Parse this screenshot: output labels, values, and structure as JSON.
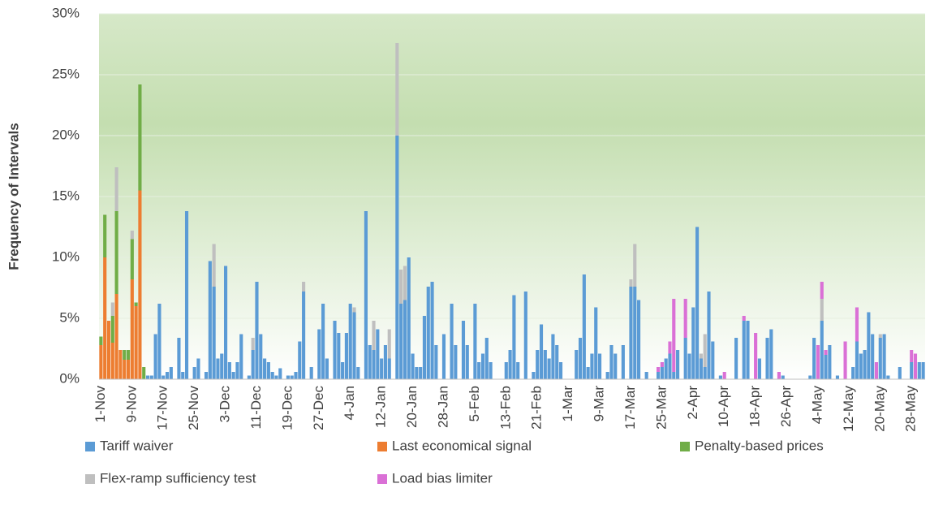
{
  "chart_data": {
    "type": "stacked-bar",
    "y_label": "Frequency of Intervals",
    "categories": [
      "1-Nov",
      null,
      null,
      null,
      null,
      null,
      null,
      null,
      "9-Nov",
      null,
      null,
      null,
      null,
      null,
      null,
      null,
      "17-Nov",
      null,
      null,
      null,
      null,
      null,
      null,
      null,
      "25-Nov",
      null,
      null,
      null,
      null,
      null,
      null,
      null,
      "3-Dec",
      null,
      null,
      null,
      null,
      null,
      null,
      null,
      "11-Dec",
      null,
      null,
      null,
      null,
      null,
      null,
      null,
      "19-Dec",
      null,
      null,
      null,
      null,
      null,
      null,
      null,
      "27-Dec",
      null,
      null,
      null,
      null,
      null,
      null,
      null,
      "4-Jan",
      null,
      null,
      null,
      null,
      null,
      null,
      null,
      "12-Jan",
      null,
      null,
      null,
      null,
      null,
      null,
      null,
      "20-Jan",
      null,
      null,
      null,
      null,
      null,
      null,
      null,
      "28-Jan",
      null,
      null,
      null,
      null,
      null,
      null,
      null,
      "5-Feb",
      null,
      null,
      null,
      null,
      null,
      null,
      null,
      "13-Feb",
      null,
      null,
      null,
      null,
      null,
      null,
      null,
      "21-Feb",
      null,
      null,
      null,
      null,
      null,
      null,
      null,
      "1-Mar",
      null,
      null,
      null,
      null,
      null,
      null,
      null,
      "9-Mar",
      null,
      null,
      null,
      null,
      null,
      null,
      null,
      "17-Mar",
      null,
      null,
      null,
      null,
      null,
      null,
      null,
      "25-Mar",
      null,
      null,
      null,
      null,
      null,
      null,
      null,
      "2-Apr",
      null,
      null,
      null,
      null,
      null,
      null,
      null,
      "10-Apr",
      null,
      null,
      null,
      null,
      null,
      null,
      null,
      "18-Apr",
      null,
      null,
      null,
      null,
      null,
      null,
      null,
      "26-Apr",
      null,
      null,
      null,
      null,
      null,
      null,
      null,
      "4-May",
      null,
      null,
      null,
      null,
      null,
      null,
      null,
      "12-May",
      null,
      null,
      null,
      null,
      null,
      null,
      null,
      "20-May",
      null,
      null,
      null,
      null,
      null,
      null,
      null,
      "28-May",
      null,
      null,
      null
    ],
    "series": [
      {
        "name": "Tariff waiver",
        "color": "#5b9bd5",
        "values": [
          0,
          0,
          0,
          0,
          0,
          0,
          0,
          0,
          0,
          0,
          0,
          0,
          0.3,
          0.3,
          3.7,
          6.2,
          0.3,
          0.6,
          1.0,
          0,
          3.4,
          0.6,
          13.8,
          0,
          1.0,
          1.7,
          0,
          0.6,
          9.7,
          7.6,
          1.7,
          2.1,
          9.3,
          1.4,
          0.6,
          1.4,
          3.7,
          0,
          0.3,
          2.4,
          8.0,
          3.7,
          1.7,
          1.4,
          0.6,
          0.3,
          0.9,
          0,
          0.3,
          0.3,
          0.6,
          3.1,
          7.2,
          0,
          1.0,
          0,
          4.1,
          6.2,
          1.7,
          0,
          4.8,
          3.8,
          1.4,
          3.8,
          6.2,
          5.5,
          1.0,
          0,
          13.8,
          2.8,
          2.4,
          4.1,
          1.7,
          2.8,
          1.7,
          0,
          20.0,
          6.2,
          6.5,
          10.0,
          2.1,
          1.0,
          1.0,
          5.2,
          7.6,
          8.0,
          2.8,
          0,
          3.7,
          0,
          6.2,
          2.8,
          0,
          4.8,
          2.8,
          0,
          6.2,
          1.4,
          2.1,
          3.4,
          1.4,
          0,
          0,
          0,
          1.4,
          2.4,
          6.9,
          1.4,
          0,
          7.2,
          0,
          0.6,
          2.4,
          4.5,
          2.4,
          1.7,
          3.7,
          2.8,
          1.4,
          0,
          0,
          0,
          2.4,
          3.4,
          8.6,
          1.0,
          2.1,
          5.9,
          2.1,
          0,
          0.6,
          2.8,
          2.1,
          0,
          2.8,
          0,
          7.6,
          7.6,
          6.5,
          0,
          0.6,
          0,
          0,
          0.6,
          1.0,
          1.7,
          2.1,
          0.6,
          2.4,
          0,
          3.4,
          2.1,
          5.9,
          12.5,
          1.7,
          1.0,
          7.2,
          3.1,
          0,
          0.3,
          0,
          0,
          0,
          3.4,
          0,
          4.8,
          4.8,
          0,
          0,
          1.7,
          0,
          3.4,
          4.1,
          0,
          0,
          0.3,
          0,
          0,
          0,
          0,
          0,
          0,
          0.3,
          3.4,
          0,
          4.8,
          2.0,
          2.8,
          0,
          0.3,
          0,
          0,
          0,
          1.0,
          3.1,
          2.1,
          2.4,
          5.5,
          3.7,
          0,
          3.4,
          3.7,
          0.3,
          0,
          0,
          1.0,
          0,
          0,
          1.4,
          0,
          1.4,
          1.4
        ]
      },
      {
        "name": "Last economical signal",
        "color": "#ed7d31",
        "values": [
          2.8,
          10,
          4.8,
          3,
          7,
          2.4,
          1.6,
          1.6,
          8.2,
          6,
          15.5,
          0,
          0,
          0,
          0,
          0,
          0,
          0,
          0,
          0,
          0,
          0,
          0,
          0,
          0,
          0,
          0,
          0,
          0,
          0,
          0,
          0,
          0,
          0,
          0,
          0,
          0,
          0,
          0,
          0,
          0,
          0,
          0,
          0,
          0,
          0,
          0,
          0,
          0,
          0,
          0,
          0,
          0,
          0,
          0,
          0,
          0,
          0,
          0,
          0,
          0,
          0,
          0,
          0,
          0,
          0,
          0,
          0,
          0,
          0,
          0,
          0,
          0,
          0,
          0,
          0,
          0,
          0,
          0,
          0,
          0,
          0,
          0,
          0,
          0,
          0,
          0,
          0,
          0,
          0,
          0,
          0,
          0,
          0,
          0,
          0,
          0,
          0,
          0,
          0,
          0,
          0,
          0,
          0,
          0,
          0,
          0,
          0,
          0,
          0,
          0,
          0,
          0,
          0,
          0,
          0,
          0,
          0,
          0,
          0,
          0,
          0,
          0,
          0,
          0,
          0,
          0,
          0,
          0,
          0,
          0,
          0,
          0,
          0,
          0,
          0,
          0,
          0,
          0,
          0,
          0,
          0,
          0,
          0,
          0,
          0,
          0,
          0,
          0,
          0,
          0,
          0,
          0,
          0,
          0,
          0,
          0,
          0,
          0,
          0,
          0,
          0,
          0,
          0,
          0,
          0,
          0,
          0,
          0,
          0,
          0,
          0,
          0,
          0,
          0,
          0,
          0,
          0,
          0,
          0,
          0,
          0,
          0,
          0,
          0,
          0,
          0,
          0,
          0,
          0,
          0,
          0,
          0,
          0,
          0,
          0,
          0,
          0,
          0,
          0,
          0,
          0,
          0,
          0,
          0,
          0,
          0,
          0,
          0,
          0,
          0,
          0
        ]
      },
      {
        "name": "Penalty-based prices",
        "color": "#70ad47",
        "values": [
          0.7,
          3.5,
          0,
          2.2,
          6.8,
          0,
          0.8,
          0.8,
          3.3,
          0.3,
          8.7,
          1.0,
          0,
          0,
          0,
          0,
          0,
          0,
          0,
          0,
          0,
          0,
          0,
          0,
          0,
          0,
          0,
          0,
          0,
          0,
          0,
          0,
          0,
          0,
          0,
          0,
          0,
          0,
          0,
          0,
          0,
          0,
          0,
          0,
          0,
          0,
          0,
          0,
          0,
          0,
          0,
          0,
          0,
          0,
          0,
          0,
          0,
          0,
          0,
          0,
          0,
          0,
          0,
          0,
          0,
          0,
          0,
          0,
          0,
          0,
          0,
          0,
          0,
          0,
          0,
          0,
          0,
          0,
          0,
          0,
          0,
          0,
          0,
          0,
          0,
          0,
          0,
          0,
          0,
          0,
          0,
          0,
          0,
          0,
          0,
          0,
          0,
          0,
          0,
          0,
          0,
          0,
          0,
          0,
          0,
          0,
          0,
          0,
          0,
          0,
          0,
          0,
          0,
          0,
          0,
          0,
          0,
          0,
          0,
          0,
          0,
          0,
          0,
          0,
          0,
          0,
          0,
          0,
          0,
          0,
          0,
          0,
          0,
          0,
          0,
          0,
          0,
          0,
          0,
          0,
          0,
          0,
          0,
          0,
          0,
          0,
          0,
          0,
          0,
          0,
          0,
          0,
          0,
          0,
          0,
          0,
          0,
          0,
          0,
          0,
          0,
          0,
          0,
          0,
          0,
          0,
          0,
          0,
          0,
          0,
          0,
          0,
          0,
          0,
          0,
          0,
          0,
          0,
          0,
          0,
          0,
          0,
          0,
          0,
          0,
          0,
          0,
          0,
          0,
          0,
          0,
          0,
          0,
          0,
          0,
          0,
          0,
          0,
          0,
          0,
          0,
          0,
          0,
          0,
          0,
          0,
          0,
          0,
          0,
          0,
          0,
          0
        ]
      },
      {
        "name": "Flex-ramp sufficiency test",
        "color": "#bfbfbf",
        "values": [
          0,
          0,
          0,
          1.1,
          3.6,
          0,
          0,
          0,
          0.7,
          0,
          0,
          0,
          0,
          0,
          0,
          0,
          0,
          0,
          0,
          0,
          0,
          0,
          0,
          0,
          0,
          0,
          0,
          0,
          0,
          3.5,
          0,
          0,
          0,
          0,
          0,
          0,
          0,
          0,
          0,
          1.0,
          0,
          0,
          0,
          0,
          0,
          0,
          0,
          0,
          0,
          0,
          0,
          0,
          0.8,
          0,
          0,
          0,
          0,
          0,
          0,
          0,
          0,
          0,
          0,
          0,
          0,
          0.4,
          0,
          0,
          0,
          0,
          2.4,
          0,
          0,
          0,
          2.4,
          0,
          7.6,
          2.8,
          2.8,
          0,
          0,
          0,
          0,
          0,
          0,
          0,
          0,
          0,
          0,
          0,
          0,
          0,
          0,
          0,
          0,
          0,
          0,
          0,
          0,
          0,
          0,
          0,
          0,
          0,
          0,
          0,
          0,
          0,
          0,
          0,
          0,
          0,
          0,
          0,
          0,
          0,
          0,
          0,
          0,
          0,
          0,
          0,
          0,
          0,
          0,
          0,
          0,
          0,
          0,
          0,
          0,
          0,
          0,
          0,
          0,
          0,
          0.6,
          3.5,
          0,
          0,
          0,
          0,
          0,
          0,
          0,
          0,
          0,
          0,
          0,
          0,
          0,
          0,
          0,
          0,
          0.4,
          2.7,
          0,
          0,
          0,
          0,
          0,
          0,
          0,
          0,
          0,
          0,
          0,
          0,
          0,
          0,
          0,
          0,
          0,
          0,
          0,
          0,
          0,
          0,
          0,
          0,
          0,
          0,
          0,
          0,
          0,
          1.8,
          0,
          0,
          0,
          0,
          0,
          0,
          0,
          0,
          0,
          0,
          0,
          0,
          0,
          0,
          0.3,
          0,
          0,
          0,
          0,
          0,
          0,
          0,
          0,
          0,
          0,
          0
        ]
      },
      {
        "name": "Load bias limiter",
        "color": "#da70d6",
        "values": [
          0,
          0,
          0,
          0,
          0,
          0,
          0,
          0,
          0,
          0,
          0,
          0,
          0,
          0,
          0,
          0,
          0,
          0,
          0,
          0,
          0,
          0,
          0,
          0,
          0,
          0,
          0,
          0,
          0,
          0,
          0,
          0,
          0,
          0,
          0,
          0,
          0,
          0,
          0,
          0,
          0,
          0,
          0,
          0,
          0,
          0,
          0,
          0,
          0,
          0,
          0,
          0,
          0,
          0,
          0,
          0,
          0,
          0,
          0,
          0,
          0,
          0,
          0,
          0,
          0,
          0,
          0,
          0,
          0,
          0,
          0,
          0,
          0,
          0,
          0,
          0,
          0,
          0,
          0,
          0,
          0,
          0,
          0,
          0,
          0,
          0,
          0,
          0,
          0,
          0,
          0,
          0,
          0,
          0,
          0,
          0,
          0,
          0,
          0,
          0,
          0,
          0,
          0,
          0,
          0,
          0,
          0,
          0,
          0,
          0,
          0,
          0,
          0,
          0,
          0,
          0,
          0,
          0,
          0,
          0,
          0,
          0,
          0,
          0,
          0,
          0,
          0,
          0,
          0,
          0,
          0,
          0,
          0,
          0,
          0,
          0,
          0,
          0,
          0,
          0,
          0,
          0,
          0,
          0.4,
          0.4,
          0,
          1.0,
          6.0,
          0,
          0,
          3.2,
          0,
          0,
          0,
          0,
          0,
          0,
          0,
          0,
          0,
          0.6,
          0,
          0,
          0,
          0,
          0.4,
          0,
          0,
          3.8,
          0,
          0,
          0,
          0,
          0,
          0.6,
          0,
          0,
          0,
          0,
          0,
          0,
          0,
          0,
          0,
          2.8,
          1.4,
          0.4,
          0,
          0,
          0,
          0,
          3.1,
          0,
          0,
          2.8,
          0,
          0,
          0,
          0,
          1.4,
          0,
          0,
          0,
          0,
          0,
          0,
          0,
          0,
          1.0,
          2.1,
          0,
          0
        ]
      }
    ],
    "ylim": [
      0,
      30
    ],
    "yticks": [
      {
        "value": 0,
        "label": "0%"
      },
      {
        "value": 5,
        "label": "5%"
      },
      {
        "value": 10,
        "label": "10%"
      },
      {
        "value": 15,
        "label": "15%"
      },
      {
        "value": 20,
        "label": "20%"
      },
      {
        "value": 25,
        "label": "25%"
      },
      {
        "value": 30,
        "label": "30%"
      }
    ],
    "grid": true
  }
}
